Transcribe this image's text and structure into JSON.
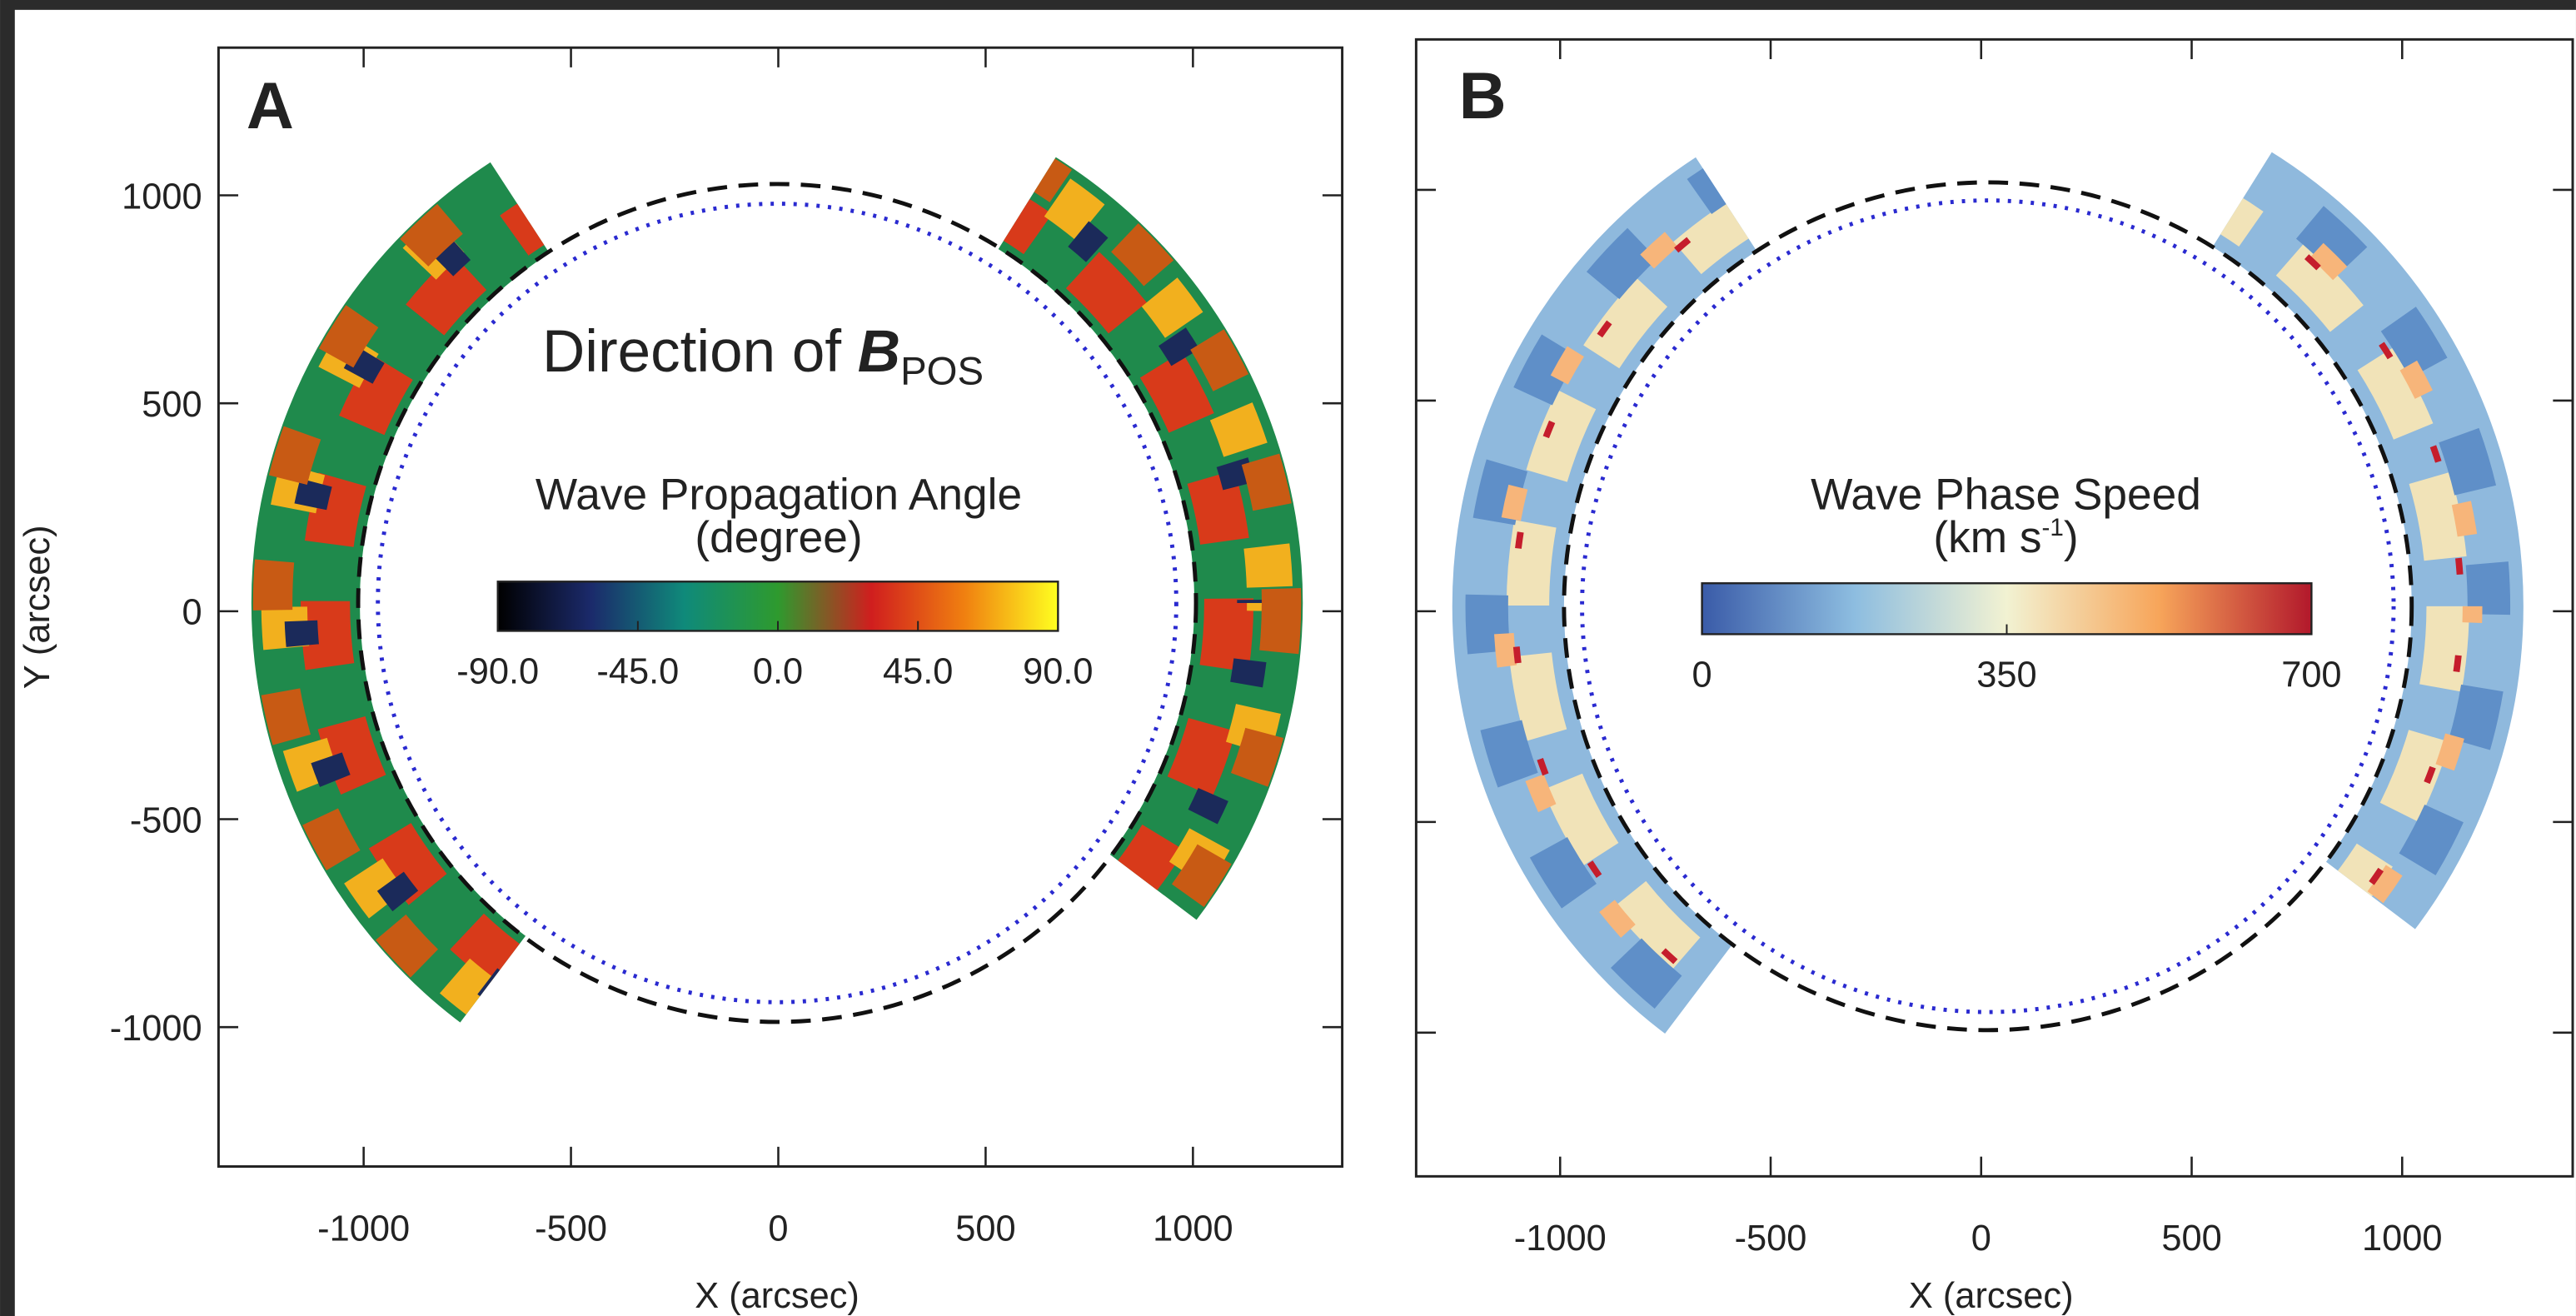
{
  "chart_data": [
    {
      "type": "image",
      "panel_label": "A",
      "title_parts": [
        "Direction of",
        "B",
        "POS"
      ],
      "xlabel": "X (arcsec)",
      "ylabel": "Y (arcsec)",
      "xlim": [
        -1350,
        1360
      ],
      "ylim": [
        -1335,
        1355
      ],
      "xticks": [
        -1000,
        -500,
        0,
        500,
        1000
      ],
      "yticks": [
        -1000,
        -500,
        0,
        500,
        1000
      ],
      "colorbar": {
        "label_lines": [
          "Wave Propagation Angle",
          "(degree)"
        ],
        "lim": [
          -90,
          90
        ],
        "ticks": [
          {
            "value": -90,
            "label": "-90.0"
          },
          {
            "value": -45,
            "label": "-45.0"
          },
          {
            "value": 0,
            "label": "0.0"
          },
          {
            "value": 45,
            "label": "45.0"
          },
          {
            "value": 90,
            "label": "90.0"
          }
        ],
        "colors": [
          "#000000",
          "#1b2a6b",
          "#0f8a7a",
          "#2e9a2e",
          "#d01e1e",
          "#f08010",
          "#ffff20"
        ]
      }
    },
    {
      "type": "image",
      "panel_label": "B",
      "xlabel": "X (arcsec)",
      "xlim": [
        -1342,
        1405
      ],
      "ylim": [
        -1341,
        1357
      ],
      "xticks": [
        -1000,
        -500,
        0,
        500,
        1000
      ],
      "yticks": [
        -1000,
        -500,
        0,
        500,
        1000
      ],
      "ytick_labels": false,
      "colorbar": {
        "label_lines": [
          "Wave Phase Speed",
          "(km s"
        ],
        "label_superscript": "-1",
        "label_suffix": ")",
        "lim": [
          0,
          700
        ],
        "ticks": [
          0,
          350,
          700
        ],
        "colors": [
          "#3a5ba8",
          "#8dbde0",
          "#f2f2d2",
          "#f7a55a",
          "#b2182b"
        ]
      }
    }
  ]
}
